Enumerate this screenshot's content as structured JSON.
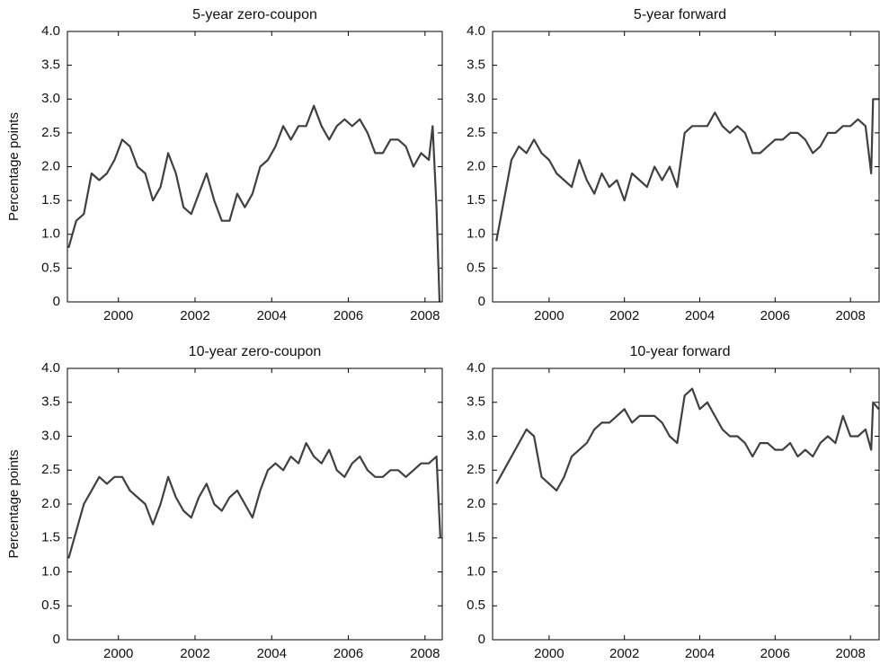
{
  "chart_data": [
    {
      "type": "line",
      "title": "5-year zero-coupon",
      "ylabel": "Percentage points",
      "x": [
        1998.7,
        1998.9,
        1999.1,
        1999.3,
        1999.5,
        1999.7,
        1999.9,
        2000.1,
        2000.3,
        2000.5,
        2000.7,
        2000.9,
        2001.1,
        2001.3,
        2001.5,
        2001.7,
        2001.9,
        2002.1,
        2002.3,
        2002.5,
        2002.7,
        2002.9,
        2003.1,
        2003.3,
        2003.5,
        2003.7,
        2003.9,
        2004.1,
        2004.3,
        2004.5,
        2004.7,
        2004.9,
        2005.1,
        2005.3,
        2005.5,
        2005.7,
        2005.9,
        2006.1,
        2006.3,
        2006.5,
        2006.7,
        2006.9,
        2007.1,
        2007.3,
        2007.5,
        2007.7,
        2007.9,
        2008.1,
        2008.2,
        2008.3,
        2008.38
      ],
      "series": [
        {
          "color": "#404040",
          "values": [
            0.8,
            1.2,
            1.3,
            1.9,
            1.8,
            1.9,
            2.1,
            2.4,
            2.3,
            2.0,
            1.9,
            1.5,
            1.7,
            2.2,
            1.9,
            1.4,
            1.3,
            1.6,
            1.9,
            1.5,
            1.2,
            1.2,
            1.6,
            1.4,
            1.6,
            2.0,
            2.1,
            2.3,
            2.6,
            2.4,
            2.6,
            2.6,
            2.9,
            2.6,
            2.4,
            2.6,
            2.7,
            2.6,
            2.7,
            2.5,
            2.2,
            2.2,
            2.4,
            2.4,
            2.3,
            2.0,
            2.2,
            2.1,
            2.6,
            1.4,
            0
          ]
        }
      ],
      "xlim": [
        1998.67,
        2008.45
      ],
      "ylim": [
        0,
        4
      ],
      "xticks": [
        2000,
        2002,
        2004,
        2006,
        2008
      ],
      "yticks": [
        0,
        0.5,
        {
          "value": 1,
          "label": "1.0"
        },
        1.5,
        {
          "value": 2,
          "label": "2.0"
        },
        2.5,
        {
          "value": 3,
          "label": "3.0"
        },
        3.5,
        {
          "value": 4,
          "label": "4.0"
        }
      ]
    },
    {
      "type": "line",
      "title": "5-year forward",
      "x": [
        1998.6,
        1998.8,
        1999.0,
        1999.2,
        1999.4,
        1999.6,
        1999.8,
        2000.0,
        2000.2,
        2000.4,
        2000.6,
        2000.8,
        2001.0,
        2001.2,
        2001.4,
        2001.6,
        2001.8,
        2002.0,
        2002.2,
        2002.4,
        2002.6,
        2002.8,
        2003.0,
        2003.2,
        2003.4,
        2003.6,
        2003.8,
        2004.0,
        2004.2,
        2004.4,
        2004.6,
        2004.8,
        2005.0,
        2005.2,
        2005.4,
        2005.6,
        2005.8,
        2006.0,
        2006.2,
        2006.4,
        2006.6,
        2006.8,
        2007.0,
        2007.2,
        2007.4,
        2007.6,
        2007.8,
        2008.0,
        2008.2,
        2008.4,
        2008.55,
        2008.6,
        2008.75
      ],
      "series": [
        {
          "color": "#404040",
          "values": [
            0.9,
            1.5,
            2.1,
            2.3,
            2.2,
            2.4,
            2.2,
            2.1,
            1.9,
            1.8,
            1.7,
            2.1,
            1.8,
            1.6,
            1.9,
            1.7,
            1.8,
            1.5,
            1.9,
            1.8,
            1.7,
            2.0,
            1.8,
            2.0,
            1.7,
            2.5,
            2.6,
            2.6,
            2.6,
            2.8,
            2.6,
            2.5,
            2.6,
            2.5,
            2.2,
            2.2,
            2.3,
            2.4,
            2.4,
            2.5,
            2.5,
            2.4,
            2.2,
            2.3,
            2.5,
            2.5,
            2.6,
            2.6,
            2.7,
            2.6,
            1.9,
            3.0,
            3.0
          ]
        }
      ],
      "xlim": [
        1998.5,
        2008.76
      ],
      "ylim": [
        0,
        4
      ],
      "xticks": [
        2000,
        2002,
        2004,
        2006,
        2008
      ],
      "yticks": [
        0,
        0.5,
        {
          "value": 1,
          "label": "1.0"
        },
        1.5,
        {
          "value": 2,
          "label": "2.0"
        },
        2.5,
        {
          "value": 3,
          "label": "3.0"
        },
        3.5,
        {
          "value": 4,
          "label": "4.0"
        }
      ]
    },
    {
      "type": "line",
      "title": "10-year zero-coupon",
      "ylabel": "Percentage points",
      "x": [
        1998.7,
        1998.9,
        1999.1,
        1999.3,
        1999.5,
        1999.7,
        1999.9,
        2000.1,
        2000.3,
        2000.5,
        2000.7,
        2000.9,
        2001.1,
        2001.3,
        2001.5,
        2001.7,
        2001.9,
        2002.1,
        2002.3,
        2002.5,
        2002.7,
        2002.9,
        2003.1,
        2003.3,
        2003.5,
        2003.7,
        2003.9,
        2004.1,
        2004.3,
        2004.5,
        2004.7,
        2004.9,
        2005.1,
        2005.3,
        2005.5,
        2005.7,
        2005.9,
        2006.1,
        2006.3,
        2006.5,
        2006.7,
        2006.9,
        2007.1,
        2007.3,
        2007.5,
        2007.7,
        2007.9,
        2008.1,
        2008.3,
        2008.4
      ],
      "series": [
        {
          "color": "#404040",
          "values": [
            1.2,
            1.6,
            2.0,
            2.2,
            2.4,
            2.3,
            2.4,
            2.4,
            2.2,
            2.1,
            2.0,
            1.7,
            2.0,
            2.4,
            2.1,
            1.9,
            1.8,
            2.1,
            2.3,
            2.0,
            1.9,
            2.1,
            2.2,
            2.0,
            1.8,
            2.2,
            2.5,
            2.6,
            2.5,
            2.7,
            2.6,
            2.9,
            2.7,
            2.6,
            2.8,
            2.5,
            2.4,
            2.6,
            2.7,
            2.5,
            2.4,
            2.4,
            2.5,
            2.5,
            2.4,
            2.5,
            2.6,
            2.6,
            2.7,
            1.5
          ]
        }
      ],
      "xlim": [
        1998.67,
        2008.45
      ],
      "ylim": [
        0,
        4
      ],
      "xticks": [
        2000,
        2002,
        2004,
        2006,
        2008
      ],
      "yticks": [
        0,
        0.5,
        {
          "value": 1,
          "label": "1.0"
        },
        1.5,
        {
          "value": 2,
          "label": "2.0"
        },
        2.5,
        {
          "value": 3,
          "label": "3.0"
        },
        3.5,
        {
          "value": 4,
          "label": "4.0"
        }
      ]
    },
    {
      "type": "line",
      "title": "10-year forward",
      "x": [
        1998.6,
        1998.8,
        1999.0,
        1999.2,
        1999.4,
        1999.6,
        1999.8,
        2000.0,
        2000.2,
        2000.4,
        2000.6,
        2000.8,
        2001.0,
        2001.2,
        2001.4,
        2001.6,
        2001.8,
        2002.0,
        2002.2,
        2002.4,
        2002.6,
        2002.8,
        2003.0,
        2003.2,
        2003.4,
        2003.6,
        2003.8,
        2004.0,
        2004.2,
        2004.4,
        2004.6,
        2004.8,
        2005.0,
        2005.2,
        2005.4,
        2005.6,
        2005.8,
        2006.0,
        2006.2,
        2006.4,
        2006.6,
        2006.8,
        2007.0,
        2007.2,
        2007.4,
        2007.6,
        2007.8,
        2008.0,
        2008.2,
        2008.4,
        2008.55,
        2008.6,
        2008.75
      ],
      "series": [
        {
          "color": "#404040",
          "values": [
            2.3,
            2.5,
            2.7,
            2.9,
            3.1,
            3.0,
            2.4,
            2.3,
            2.2,
            2.4,
            2.7,
            2.8,
            2.9,
            3.1,
            3.2,
            3.2,
            3.3,
            3.4,
            3.2,
            3.3,
            3.3,
            3.3,
            3.2,
            3.0,
            2.9,
            3.6,
            3.7,
            3.4,
            3.5,
            3.3,
            3.1,
            3.0,
            3.0,
            2.9,
            2.7,
            2.9,
            2.9,
            2.8,
            2.8,
            2.9,
            2.7,
            2.8,
            2.7,
            2.9,
            3.0,
            2.9,
            3.3,
            3.0,
            3.0,
            3.1,
            2.8,
            3.5,
            3.4
          ]
        }
      ],
      "xlim": [
        1998.5,
        2008.76
      ],
      "ylim": [
        0,
        4
      ],
      "xticks": [
        2000,
        2002,
        2004,
        2006,
        2008
      ],
      "yticks": [
        0,
        0.5,
        {
          "value": 1,
          "label": "1.0"
        },
        1.5,
        {
          "value": 2,
          "label": "2.0"
        },
        2.5,
        {
          "value": 3,
          "label": "3.0"
        },
        3.5,
        {
          "value": 4,
          "label": "4.0"
        }
      ]
    }
  ]
}
